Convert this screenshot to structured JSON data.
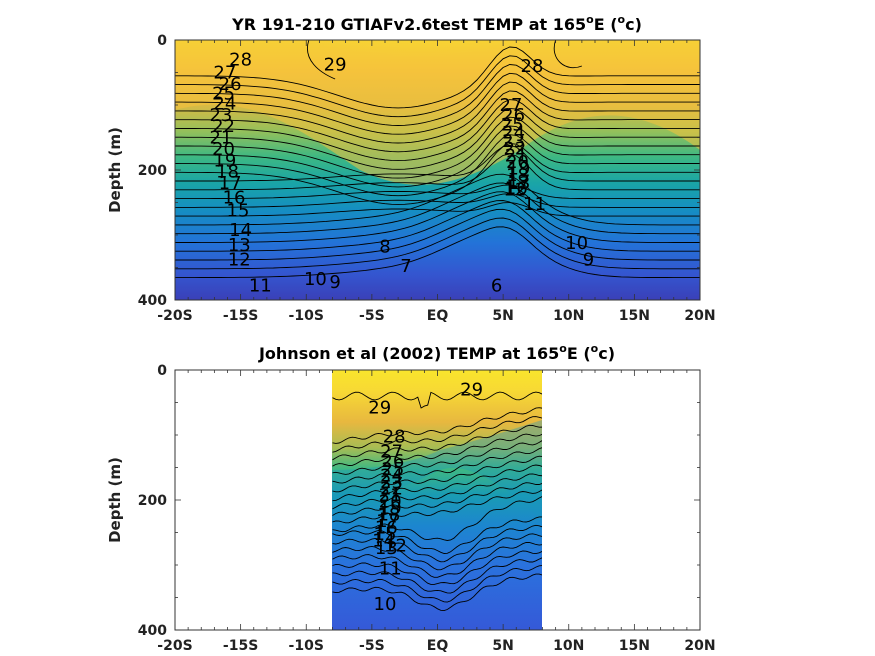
{
  "chart_data": [
    {
      "type": "heatmap",
      "subtype": "filled-contour",
      "title": "YR 191-210 GTIAFv2.6test TEMP at 165",
      "title_superscript": "o",
      "title_suffix": "E (",
      "title_unit_superscript": "o",
      "title_end": "c)",
      "ylabel": "Depth (m)",
      "xlabel": "",
      "x_tick_labels": [
        "-20S",
        "-15S",
        "-10S",
        "-5S",
        "EQ",
        "5N",
        "10N",
        "15N",
        "20N"
      ],
      "x_ticks": [
        -20,
        -15,
        -10,
        -5,
        0,
        5,
        10,
        15,
        20
      ],
      "y_tick_labels": [
        "0",
        "200",
        "400"
      ],
      "y_ticks": [
        0,
        200,
        400
      ],
      "xlim": [
        -20,
        20
      ],
      "ylim": [
        400,
        0
      ],
      "y_reversed": true,
      "colormap": "parula",
      "color_range": [
        5,
        30
      ],
      "data_coverage": [
        -20,
        20
      ],
      "contour_labels": [
        {
          "text": "29",
          "x": -7.8,
          "depth": 38
        },
        {
          "text": "28",
          "x": -15.0,
          "depth": 30
        },
        {
          "text": "28",
          "x": 7.2,
          "depth": 40
        },
        {
          "text": "27",
          "x": -16.2,
          "depth": 50
        },
        {
          "text": "26",
          "x": -15.8,
          "depth": 68
        },
        {
          "text": "25",
          "x": -16.3,
          "depth": 82
        },
        {
          "text": "24",
          "x": -16.2,
          "depth": 98
        },
        {
          "text": "23",
          "x": -16.5,
          "depth": 115
        },
        {
          "text": "22",
          "x": -16.3,
          "depth": 132
        },
        {
          "text": "21",
          "x": -16.5,
          "depth": 150
        },
        {
          "text": "20",
          "x": -16.3,
          "depth": 168
        },
        {
          "text": "19",
          "x": -16.2,
          "depth": 185
        },
        {
          "text": "18",
          "x": -16.0,
          "depth": 202
        },
        {
          "text": "17",
          "x": -15.8,
          "depth": 220
        },
        {
          "text": "16",
          "x": -15.5,
          "depth": 242
        },
        {
          "text": "15",
          "x": -15.2,
          "depth": 262
        },
        {
          "text": "14",
          "x": -15.0,
          "depth": 292
        },
        {
          "text": "13",
          "x": -15.1,
          "depth": 315
        },
        {
          "text": "12",
          "x": -15.1,
          "depth": 338
        },
        {
          "text": "11",
          "x": -13.5,
          "depth": 378
        },
        {
          "text": "10",
          "x": -9.3,
          "depth": 368
        },
        {
          "text": "9",
          "x": -7.8,
          "depth": 372
        },
        {
          "text": "8",
          "x": -4.0,
          "depth": 318
        },
        {
          "text": "7",
          "x": -2.4,
          "depth": 348
        },
        {
          "text": "6",
          "x": 4.5,
          "depth": 378
        },
        {
          "text": "27",
          "x": 5.6,
          "depth": 100
        },
        {
          "text": "26",
          "x": 5.8,
          "depth": 115
        },
        {
          "text": "25",
          "x": 5.7,
          "depth": 130
        },
        {
          "text": "24",
          "x": 5.8,
          "depth": 142
        },
        {
          "text": "23",
          "x": 5.8,
          "depth": 155
        },
        {
          "text": "22",
          "x": 5.9,
          "depth": 167
        },
        {
          "text": "21",
          "x": 6.0,
          "depth": 178
        },
        {
          "text": "20",
          "x": 6.1,
          "depth": 188
        },
        {
          "text": "19",
          "x": 6.2,
          "depth": 198
        },
        {
          "text": "18",
          "x": 6.1,
          "depth": 208
        },
        {
          "text": "17",
          "x": 6.2,
          "depth": 218
        },
        {
          "text": "16",
          "x": 6.0,
          "depth": 228
        },
        {
          "text": "13",
          "x": 6.2,
          "depth": 220
        },
        {
          "text": "12",
          "x": 5.9,
          "depth": 230
        },
        {
          "text": "11",
          "x": 7.4,
          "depth": 252
        },
        {
          "text": "10",
          "x": 10.6,
          "depth": 312
        },
        {
          "text": "9",
          "x": 11.5,
          "depth": 338
        }
      ]
    },
    {
      "type": "heatmap",
      "subtype": "filled-contour",
      "title": "Johnson et al (2002) TEMP at 165",
      "title_superscript": "o",
      "title_suffix": "E (",
      "title_unit_superscript": "o",
      "title_end": "c)",
      "ylabel": "Depth (m)",
      "xlabel": "",
      "x_tick_labels": [
        "-20S",
        "-15S",
        "-10S",
        "-5S",
        "EQ",
        "5N",
        "10N",
        "15N",
        "20N"
      ],
      "x_ticks": [
        -20,
        -15,
        -10,
        -5,
        0,
        5,
        10,
        15,
        20
      ],
      "y_tick_labels": [
        "0",
        "200",
        "400"
      ],
      "y_ticks": [
        0,
        200,
        400
      ],
      "xlim": [
        -20,
        20
      ],
      "ylim": [
        400,
        0
      ],
      "y_reversed": true,
      "colormap": "parula",
      "color_range": [
        5,
        30
      ],
      "data_coverage": [
        -8,
        8
      ],
      "contour_labels": [
        {
          "text": "29",
          "x": -4.4,
          "depth": 58
        },
        {
          "text": "29",
          "x": 2.6,
          "depth": 30
        },
        {
          "text": "28",
          "x": -3.3,
          "depth": 102
        },
        {
          "text": "27",
          "x": -3.5,
          "depth": 125
        },
        {
          "text": "26",
          "x": -3.4,
          "depth": 140
        },
        {
          "text": "25",
          "x": -3.4,
          "depth": 152
        },
        {
          "text": "24",
          "x": -3.5,
          "depth": 162
        },
        {
          "text": "23",
          "x": -3.5,
          "depth": 172
        },
        {
          "text": "22",
          "x": -3.5,
          "depth": 182
        },
        {
          "text": "21",
          "x": -3.6,
          "depth": 192
        },
        {
          "text": "20",
          "x": -3.6,
          "depth": 202
        },
        {
          "text": "19",
          "x": -3.6,
          "depth": 212
        },
        {
          "text": "18",
          "x": -3.7,
          "depth": 222
        },
        {
          "text": "17",
          "x": -3.8,
          "depth": 232
        },
        {
          "text": "16",
          "x": -3.9,
          "depth": 242
        },
        {
          "text": "15",
          "x": -4.0,
          "depth": 252
        },
        {
          "text": "14",
          "x": -4.1,
          "depth": 262
        },
        {
          "text": "13",
          "x": -3.9,
          "depth": 274
        },
        {
          "text": "12",
          "x": -3.2,
          "depth": 270
        },
        {
          "text": "11",
          "x": -3.6,
          "depth": 305
        },
        {
          "text": "10",
          "x": -4.0,
          "depth": 360
        }
      ]
    }
  ]
}
